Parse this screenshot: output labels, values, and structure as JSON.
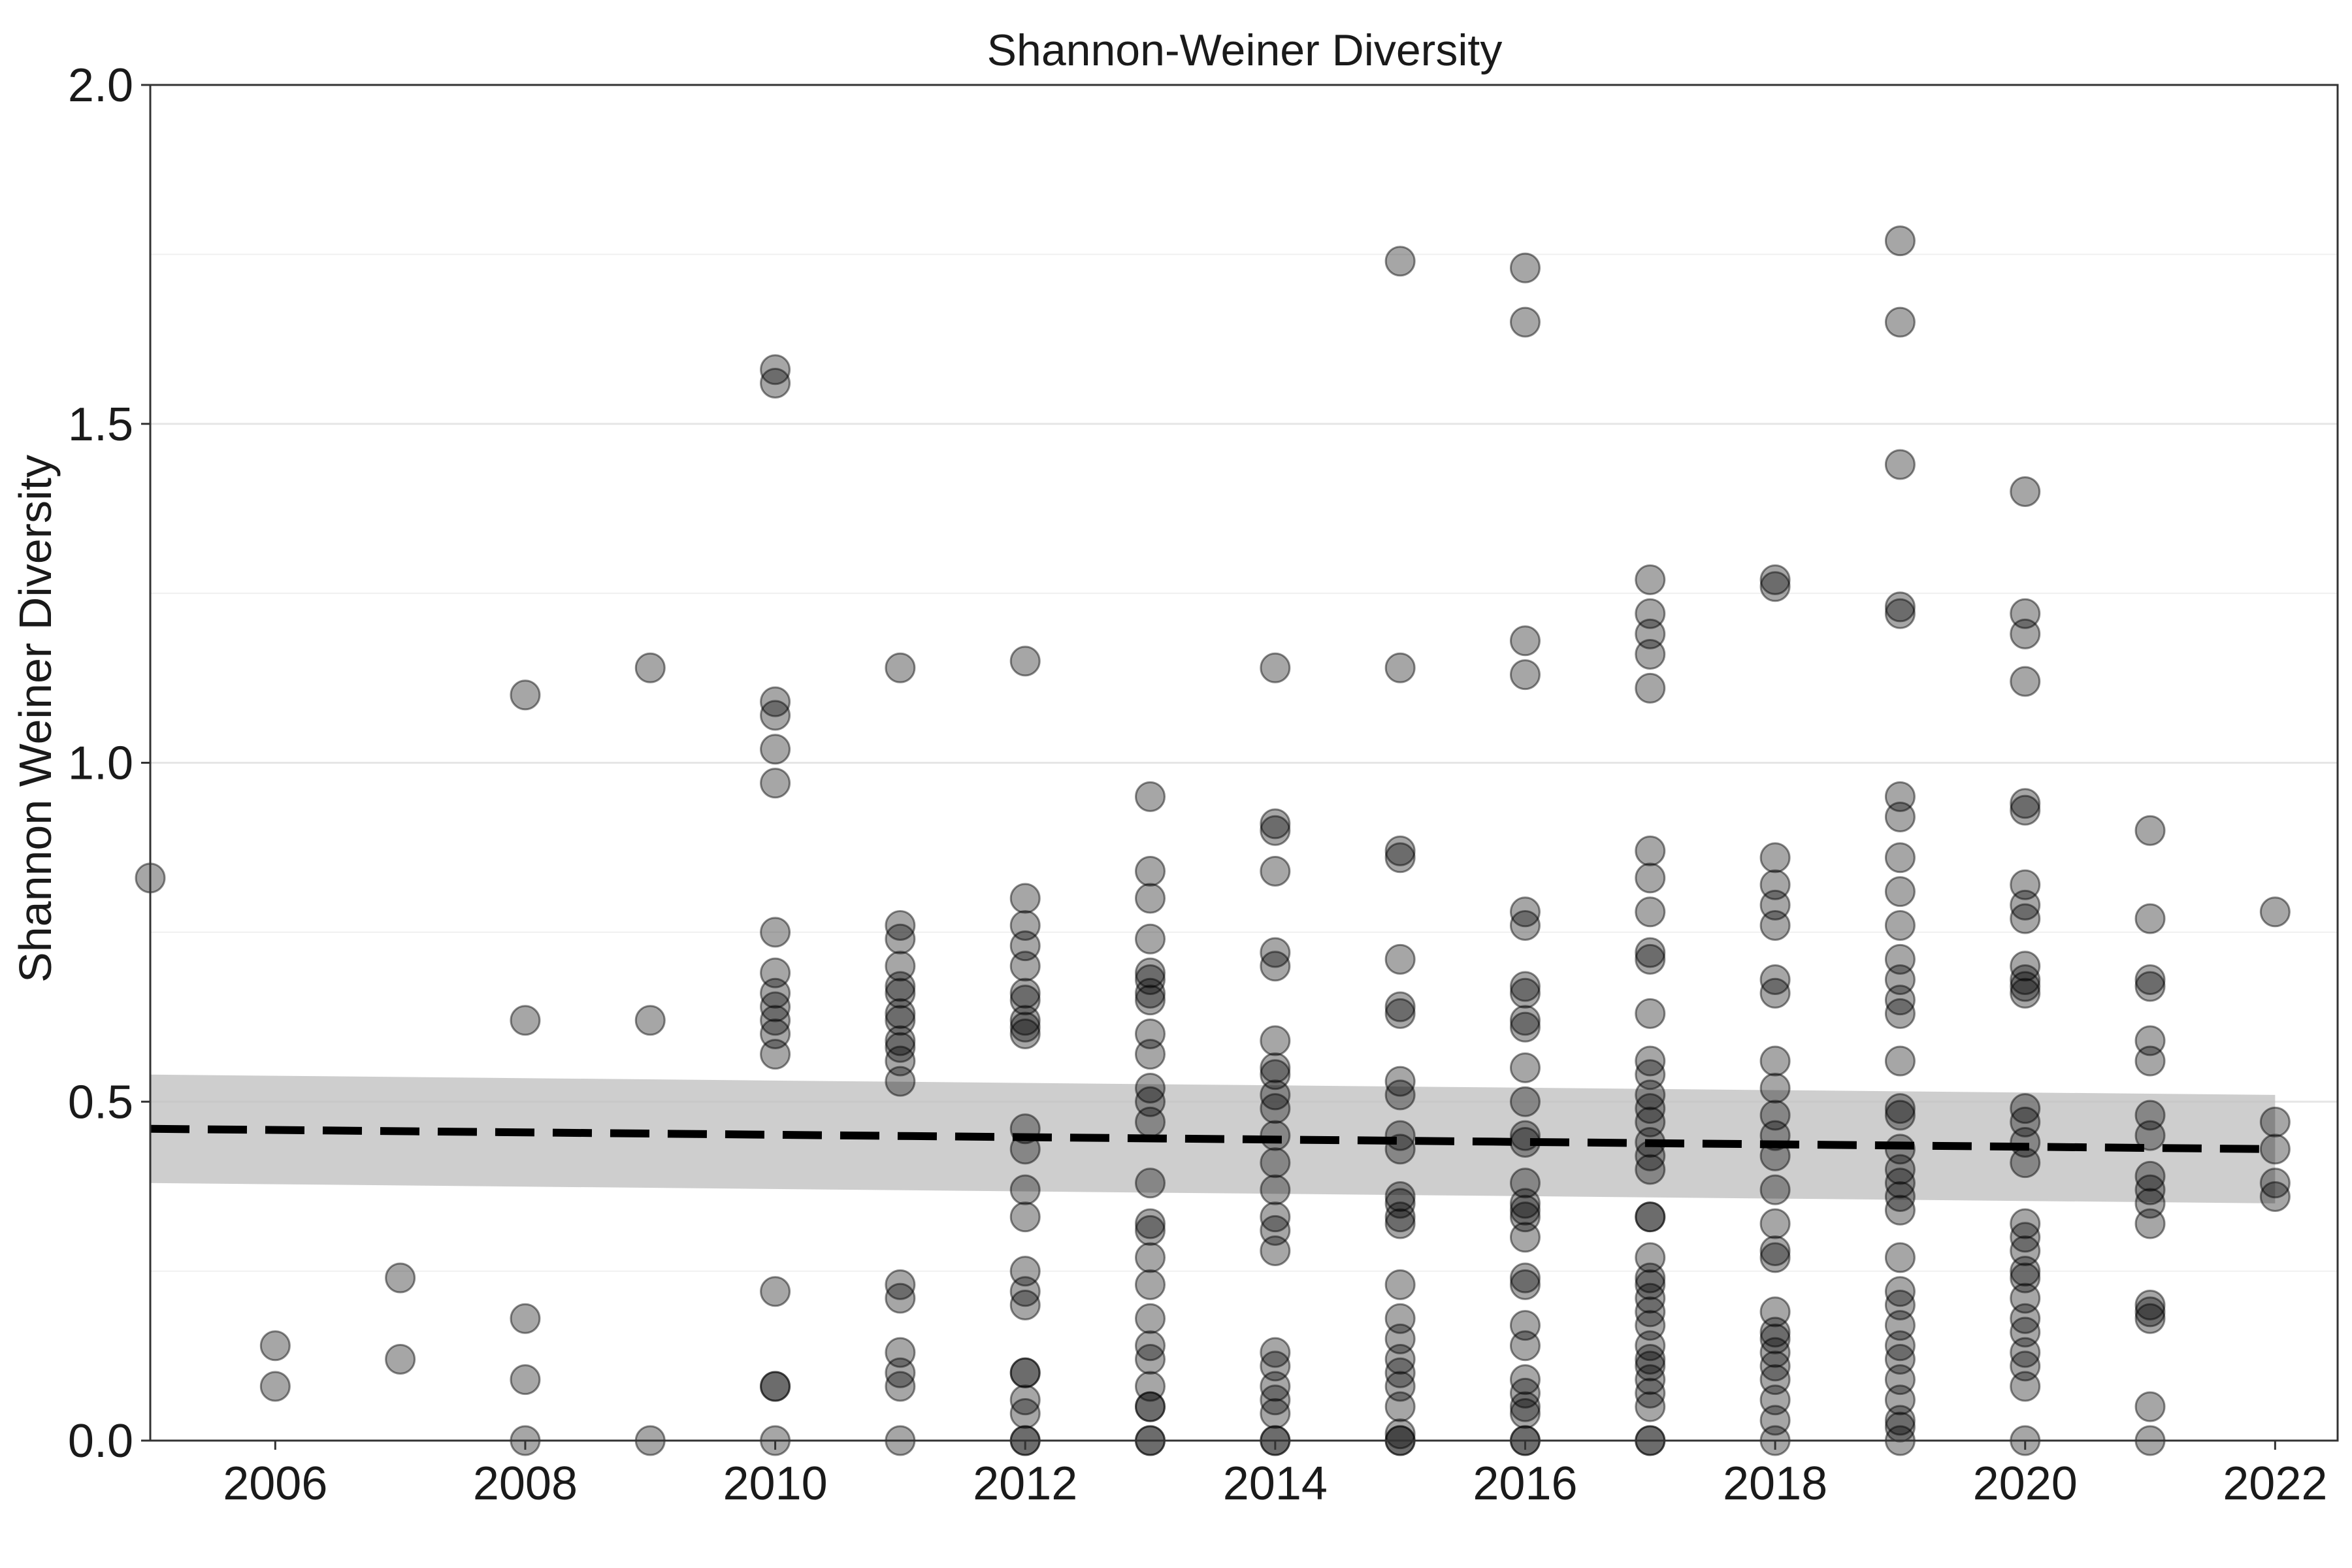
{
  "chart_data": {
    "type": "scatter",
    "title": "Shannon-Weiner Diversity",
    "xlabel": "",
    "ylabel": "Shannon Weiner Diversity",
    "xlim": [
      2005,
      2022.5
    ],
    "ylim": [
      0,
      2.0
    ],
    "x_ticks": [
      2006,
      2008,
      2010,
      2012,
      2014,
      2016,
      2018,
      2020,
      2022
    ],
    "x_tick_labels": [
      "2006",
      "2008",
      "2010",
      "2012",
      "2014",
      "2016",
      "2018",
      "2020",
      "2022"
    ],
    "y_ticks": [
      0.0,
      0.5,
      1.0,
      1.5,
      2.0
    ],
    "y_tick_labels": [
      "0.0",
      "0.5",
      "1.0",
      "1.5",
      "2.0"
    ],
    "y_minor_ticks": [
      0.25,
      0.75,
      1.25,
      1.75
    ],
    "grid": true,
    "points_by_year": [
      {
        "x": 2005,
        "y": [
          0.83
        ]
      },
      {
        "x": 2006,
        "y": [
          0.14,
          0.08
        ]
      },
      {
        "x": 2007,
        "y": [
          0.24,
          0.12
        ]
      },
      {
        "x": 2008,
        "y": [
          1.1,
          0.62,
          0.18,
          0.09,
          0.0
        ]
      },
      {
        "x": 2009,
        "y": [
          1.14,
          0.62,
          0.0
        ]
      },
      {
        "x": 2010,
        "y": [
          1.58,
          1.56,
          1.09,
          1.07,
          1.02,
          0.97,
          0.75,
          0.69,
          0.66,
          0.64,
          0.62,
          0.6,
          0.57,
          0.22,
          0.08,
          0.08,
          0.0
        ]
      },
      {
        "x": 2011,
        "y": [
          1.14,
          0.76,
          0.74,
          0.7,
          0.67,
          0.66,
          0.63,
          0.62,
          0.59,
          0.58,
          0.56,
          0.53,
          0.23,
          0.21,
          0.13,
          0.1,
          0.08,
          0.0
        ]
      },
      {
        "x": 2012,
        "y": [
          1.15,
          0.8,
          0.76,
          0.73,
          0.7,
          0.66,
          0.65,
          0.62,
          0.61,
          0.6,
          0.46,
          0.43,
          0.37,
          0.33,
          0.25,
          0.22,
          0.2,
          0.1,
          0.1,
          0.06,
          0.04,
          0.0,
          0.0
        ]
      },
      {
        "x": 2013,
        "y": [
          0.95,
          0.84,
          0.8,
          0.74,
          0.69,
          0.68,
          0.66,
          0.65,
          0.6,
          0.57,
          0.52,
          0.5,
          0.47,
          0.38,
          0.32,
          0.31,
          0.27,
          0.23,
          0.18,
          0.14,
          0.12,
          0.08,
          0.05,
          0.05,
          0.0,
          0.0
        ]
      },
      {
        "x": 2014,
        "y": [
          1.14,
          0.91,
          0.9,
          0.84,
          0.72,
          0.7,
          0.59,
          0.55,
          0.54,
          0.51,
          0.49,
          0.45,
          0.41,
          0.37,
          0.33,
          0.31,
          0.28,
          0.13,
          0.11,
          0.08,
          0.06,
          0.04,
          0.0,
          0.0
        ]
      },
      {
        "x": 2015,
        "y": [
          1.74,
          1.14,
          0.87,
          0.86,
          0.71,
          0.64,
          0.63,
          0.53,
          0.51,
          0.45,
          0.43,
          0.36,
          0.35,
          0.33,
          0.32,
          0.23,
          0.18,
          0.15,
          0.12,
          0.1,
          0.08,
          0.05,
          0.01,
          0.0,
          0.0
        ]
      },
      {
        "x": 2016,
        "y": [
          1.73,
          1.65,
          1.18,
          1.13,
          0.78,
          0.76,
          0.67,
          0.66,
          0.62,
          0.61,
          0.55,
          0.5,
          0.45,
          0.44,
          0.38,
          0.35,
          0.34,
          0.33,
          0.3,
          0.24,
          0.23,
          0.17,
          0.14,
          0.09,
          0.07,
          0.05,
          0.04,
          0.0,
          0.0
        ]
      },
      {
        "x": 2017,
        "y": [
          1.27,
          1.22,
          1.19,
          1.16,
          1.11,
          0.87,
          0.83,
          0.78,
          0.72,
          0.71,
          0.63,
          0.56,
          0.54,
          0.51,
          0.49,
          0.47,
          0.44,
          0.42,
          0.4,
          0.33,
          0.33,
          0.27,
          0.24,
          0.23,
          0.21,
          0.19,
          0.17,
          0.14,
          0.12,
          0.11,
          0.09,
          0.07,
          0.05,
          0.0,
          0.0
        ]
      },
      {
        "x": 2018,
        "y": [
          1.27,
          1.26,
          0.86,
          0.82,
          0.79,
          0.76,
          0.68,
          0.66,
          0.56,
          0.52,
          0.48,
          0.45,
          0.42,
          0.37,
          0.32,
          0.28,
          0.27,
          0.19,
          0.16,
          0.15,
          0.13,
          0.11,
          0.09,
          0.06,
          0.03,
          0.0
        ]
      },
      {
        "x": 2019,
        "y": [
          1.77,
          1.65,
          1.44,
          1.23,
          1.22,
          0.95,
          0.92,
          0.86,
          0.81,
          0.76,
          0.71,
          0.68,
          0.65,
          0.63,
          0.56,
          0.49,
          0.48,
          0.43,
          0.4,
          0.38,
          0.36,
          0.34,
          0.27,
          0.22,
          0.2,
          0.17,
          0.14,
          0.12,
          0.09,
          0.06,
          0.03,
          0.02,
          0.0
        ]
      },
      {
        "x": 2020,
        "y": [
          1.4,
          1.22,
          1.19,
          1.12,
          0.94,
          0.93,
          0.82,
          0.79,
          0.77,
          0.7,
          0.68,
          0.67,
          0.66,
          0.49,
          0.47,
          0.44,
          0.41,
          0.32,
          0.3,
          0.28,
          0.25,
          0.24,
          0.21,
          0.18,
          0.16,
          0.13,
          0.11,
          0.08,
          0.0
        ]
      },
      {
        "x": 2021,
        "y": [
          0.9,
          0.77,
          0.68,
          0.67,
          0.59,
          0.56,
          0.48,
          0.45,
          0.39,
          0.37,
          0.35,
          0.32,
          0.2,
          0.19,
          0.18,
          0.05,
          0.0
        ]
      },
      {
        "x": 2022,
        "y": [
          0.78,
          0.47,
          0.43,
          0.38,
          0.36
        ]
      }
    ],
    "trend": {
      "style": "dashed",
      "x": [
        2005,
        2022
      ],
      "y": [
        0.46,
        0.43
      ],
      "ci_lower": [
        0.38,
        0.35
      ],
      "ci_upper": [
        0.54,
        0.51
      ]
    }
  }
}
